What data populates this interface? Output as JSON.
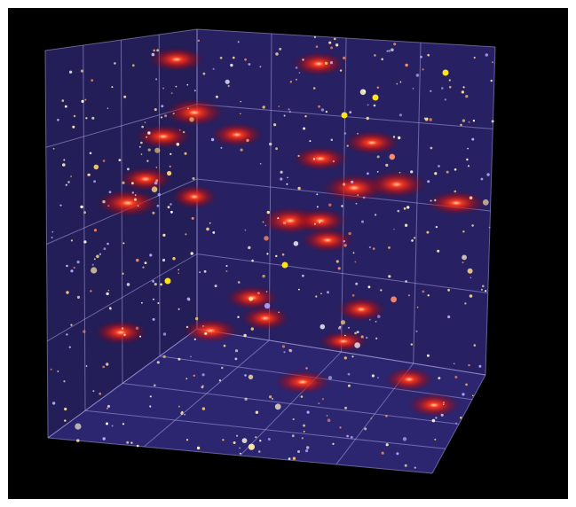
{
  "scene": {
    "subject": "3d-grid-box-with-glowing-points",
    "background_color": "#000000",
    "panel_color": "#2b2466",
    "grid_line_color": "#a9a2e0",
    "blob_color": "#ff2a10",
    "dot_colors": [
      "#ffe8a8",
      "#fff4d0",
      "#ffd27a",
      "#b6a6ff",
      "#ff8d6a",
      "#ffffff"
    ]
  }
}
